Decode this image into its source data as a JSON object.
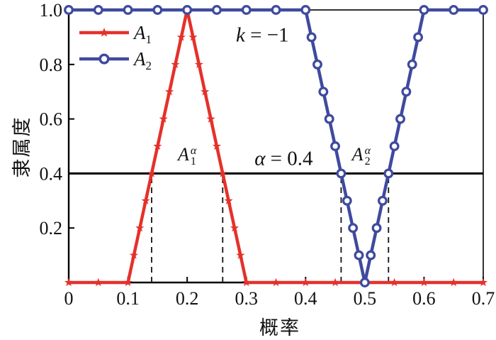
{
  "chart_data": {
    "type": "line",
    "title": "",
    "xlabel": "概率",
    "ylabel": "隶属度",
    "xlim": [
      0,
      0.7
    ],
    "ylim": [
      0,
      1.0
    ],
    "grid": false,
    "legend_position": "upper-left-inside",
    "xticks": [
      {
        "v": 0,
        "label": "0"
      },
      {
        "v": 0.1,
        "label": "0.1"
      },
      {
        "v": 0.2,
        "label": "0.2"
      },
      {
        "v": 0.3,
        "label": "0.3"
      },
      {
        "v": 0.4,
        "label": "0.4"
      },
      {
        "v": 0.5,
        "label": "0.5"
      },
      {
        "v": 0.6,
        "label": "0.6"
      },
      {
        "v": 0.7,
        "label": "0.7"
      }
    ],
    "yticks": [
      {
        "v": 0.2,
        "label": "0.2"
      },
      {
        "v": 0.4,
        "label": "0.4"
      },
      {
        "v": 0.6,
        "label": "0.6"
      },
      {
        "v": 0.8,
        "label": "0.8"
      },
      {
        "v": 1.0,
        "label": "1.0"
      }
    ],
    "series": [
      {
        "name": "A1",
        "label_base": "A",
        "label_sub": "1",
        "color": "#e4312b",
        "marker": "star",
        "points": [
          [
            0,
            0
          ],
          [
            0.05,
            0
          ],
          [
            0.1,
            0
          ],
          [
            0.11,
            0.1
          ],
          [
            0.12,
            0.2
          ],
          [
            0.13,
            0.3
          ],
          [
            0.14,
            0.4
          ],
          [
            0.15,
            0.5
          ],
          [
            0.16,
            0.6
          ],
          [
            0.17,
            0.7
          ],
          [
            0.18,
            0.8
          ],
          [
            0.19,
            0.9
          ],
          [
            0.2,
            1
          ],
          [
            0.21,
            0.9
          ],
          [
            0.22,
            0.8
          ],
          [
            0.23,
            0.7
          ],
          [
            0.24,
            0.6
          ],
          [
            0.25,
            0.5
          ],
          [
            0.26,
            0.4
          ],
          [
            0.27,
            0.3
          ],
          [
            0.28,
            0.2
          ],
          [
            0.29,
            0.1
          ],
          [
            0.3,
            0
          ],
          [
            0.35,
            0
          ],
          [
            0.4,
            0
          ],
          [
            0.45,
            0
          ],
          [
            0.5,
            0
          ],
          [
            0.55,
            0
          ],
          [
            0.6,
            0
          ],
          [
            0.65,
            0
          ],
          [
            0.7,
            0
          ]
        ]
      },
      {
        "name": "A2",
        "label_base": "A",
        "label_sub": "2",
        "color": "#3f4a9e",
        "marker": "open-circle",
        "points": [
          [
            0,
            1
          ],
          [
            0.05,
            1
          ],
          [
            0.1,
            1
          ],
          [
            0.15,
            1
          ],
          [
            0.2,
            1
          ],
          [
            0.25,
            1
          ],
          [
            0.3,
            1
          ],
          [
            0.35,
            1
          ],
          [
            0.4,
            1
          ],
          [
            0.41,
            0.9
          ],
          [
            0.42,
            0.8
          ],
          [
            0.43,
            0.7
          ],
          [
            0.44,
            0.6
          ],
          [
            0.45,
            0.5
          ],
          [
            0.46,
            0.4
          ],
          [
            0.47,
            0.3
          ],
          [
            0.48,
            0.2
          ],
          [
            0.49,
            0.1
          ],
          [
            0.5,
            0
          ],
          [
            0.51,
            0.1
          ],
          [
            0.52,
            0.2
          ],
          [
            0.53,
            0.3
          ],
          [
            0.54,
            0.4
          ],
          [
            0.55,
            0.5
          ],
          [
            0.56,
            0.6
          ],
          [
            0.57,
            0.7
          ],
          [
            0.58,
            0.8
          ],
          [
            0.59,
            0.9
          ],
          [
            0.6,
            1
          ],
          [
            0.65,
            1
          ],
          [
            0.7,
            1
          ]
        ]
      }
    ],
    "alpha_level_line": {
      "y": 0.4,
      "color": "#000000"
    },
    "alpha_cut_x": [
      0.14,
      0.26,
      0.46,
      0.54
    ],
    "annotations": {
      "k": {
        "var": "k",
        "rest": " = −1",
        "x": 0.327,
        "y": 0.905
      },
      "alpha": {
        "var": "α",
        "rest": " = 0.4",
        "x": 0.363,
        "y": 0.452
      },
      "a1_cut": {
        "base": "A",
        "sub": "1",
        "sup": "α",
        "x": 0.2,
        "y": 0.463
      },
      "a2_cut": {
        "base": "A",
        "sub": "2",
        "sup": "α",
        "x": 0.494,
        "y": 0.463
      }
    }
  }
}
